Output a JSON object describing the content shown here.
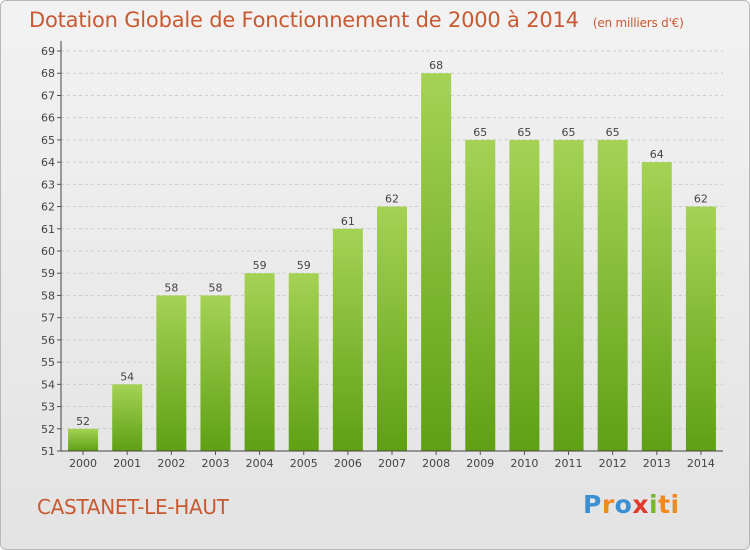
{
  "header": {
    "title": "Dotation Globale de Fonctionnement de 2000 à 2014",
    "subtitle": "(en milliers d'€)"
  },
  "footer": {
    "place": "CASTANET-LE-HAUT",
    "logo": [
      "P",
      "r",
      "o",
      "x",
      "i",
      "ti"
    ]
  },
  "colors": {
    "bar_top": "#a5d255",
    "bar_bottom": "#5fa014",
    "text_accent": "#c85a32",
    "grid": "#cccccc"
  },
  "chart_data": {
    "type": "bar",
    "title": "Dotation Globale de Fonctionnement de 2000 à 2014",
    "subtitle": "(en milliers d'€)",
    "categories": [
      "2000",
      "2001",
      "2002",
      "2003",
      "2004",
      "2005",
      "2006",
      "2007",
      "2008",
      "2009",
      "2010",
      "2011",
      "2012",
      "2013",
      "2014"
    ],
    "values": [
      52,
      54,
      58,
      58,
      59,
      59,
      61,
      62,
      68,
      65,
      65,
      65,
      65,
      64,
      62
    ],
    "ylim": [
      51,
      69
    ],
    "yticks": [
      51,
      52,
      53,
      54,
      55,
      56,
      57,
      58,
      59,
      60,
      61,
      62,
      63,
      64,
      65,
      66,
      67,
      68,
      69
    ],
    "xlabel": "",
    "ylabel": "",
    "grid": true,
    "data_labels": true
  }
}
